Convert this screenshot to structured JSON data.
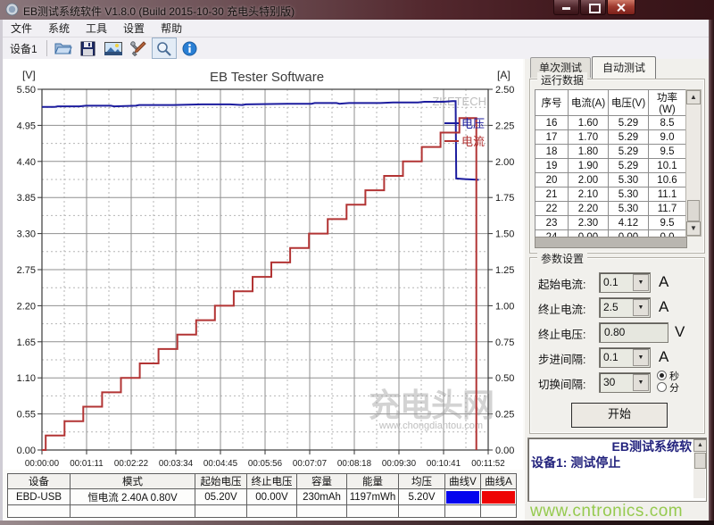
{
  "window": {
    "title": "EB测试系统软件 V1.8.0 (Build 2015-10-30 充电头特别版)"
  },
  "menu": {
    "items": [
      "文件",
      "系统",
      "工具",
      "设置",
      "帮助"
    ]
  },
  "toolbar": {
    "device_label": "设备1"
  },
  "chart_data": {
    "type": "line",
    "title": "EB Tester Software",
    "left_axis": {
      "label": "[V]",
      "min": 0,
      "max": 5.5,
      "ticks": [
        "5.50",
        "4.95",
        "4.40",
        "3.85",
        "3.30",
        "2.75",
        "2.20",
        "1.65",
        "1.10",
        "0.55",
        "0.00"
      ]
    },
    "right_axis": {
      "label": "[A]",
      "min": 0,
      "max": 2.5,
      "ticks": [
        "2.50",
        "2.25",
        "2.00",
        "1.75",
        "1.50",
        "1.25",
        "1.00",
        "0.75",
        "0.50",
        "0.25",
        "0.00"
      ]
    },
    "x_axis": {
      "min_seconds": 0,
      "max_seconds": 712,
      "ticks": [
        "00:00:00",
        "00:01:11",
        "00:02:22",
        "00:03:34",
        "00:04:45",
        "00:05:56",
        "00:07:07",
        "00:08:18",
        "00:09:30",
        "00:10:41",
        "00:11:52"
      ]
    },
    "grid": true,
    "legend_position": "top-right",
    "series": [
      {
        "name": "电压",
        "axis": "left",
        "color": "#1c1c9e",
        "points": [
          [
            0,
            5.23
          ],
          [
            20,
            5.23
          ],
          [
            25,
            5.24
          ],
          [
            60,
            5.24
          ],
          [
            70,
            5.25
          ],
          [
            110,
            5.25
          ],
          [
            115,
            5.24
          ],
          [
            150,
            5.25
          ],
          [
            155,
            5.26
          ],
          [
            210,
            5.26
          ],
          [
            255,
            5.27
          ],
          [
            300,
            5.27
          ],
          [
            320,
            5.26
          ],
          [
            325,
            5.27
          ],
          [
            390,
            5.28
          ],
          [
            430,
            5.28
          ],
          [
            435,
            5.29
          ],
          [
            470,
            5.29
          ],
          [
            475,
            5.28
          ],
          [
            490,
            5.29
          ],
          [
            540,
            5.29
          ],
          [
            560,
            5.3
          ],
          [
            600,
            5.3
          ],
          [
            610,
            5.31
          ],
          [
            640,
            5.31
          ],
          [
            655,
            5.32
          ],
          [
            660,
            5.32
          ],
          [
            661,
            4.14
          ],
          [
            675,
            4.13
          ],
          [
            697,
            4.12
          ]
        ]
      },
      {
        "name": "电流",
        "axis": "right",
        "color": "#b23434",
        "points": [
          [
            0,
            0
          ],
          [
            6,
            0
          ],
          [
            6,
            0.1
          ],
          [
            36,
            0.1
          ],
          [
            36,
            0.2
          ],
          [
            66,
            0.2
          ],
          [
            66,
            0.3
          ],
          [
            96,
            0.3
          ],
          [
            96,
            0.4
          ],
          [
            126,
            0.4
          ],
          [
            126,
            0.5
          ],
          [
            156,
            0.5
          ],
          [
            156,
            0.6
          ],
          [
            186,
            0.6
          ],
          [
            186,
            0.7
          ],
          [
            216,
            0.7
          ],
          [
            216,
            0.8
          ],
          [
            246,
            0.8
          ],
          [
            246,
            0.9
          ],
          [
            276,
            0.9
          ],
          [
            276,
            1.0
          ],
          [
            306,
            1.0
          ],
          [
            306,
            1.1
          ],
          [
            336,
            1.1
          ],
          [
            336,
            1.2
          ],
          [
            366,
            1.2
          ],
          [
            366,
            1.3
          ],
          [
            396,
            1.3
          ],
          [
            396,
            1.4
          ],
          [
            426,
            1.4
          ],
          [
            426,
            1.5
          ],
          [
            456,
            1.5
          ],
          [
            456,
            1.6
          ],
          [
            486,
            1.6
          ],
          [
            486,
            1.7
          ],
          [
            516,
            1.7
          ],
          [
            516,
            1.8
          ],
          [
            546,
            1.8
          ],
          [
            546,
            1.9
          ],
          [
            576,
            1.9
          ],
          [
            576,
            2.0
          ],
          [
            606,
            2.0
          ],
          [
            606,
            2.1
          ],
          [
            636,
            2.1
          ],
          [
            636,
            2.2
          ],
          [
            666,
            2.2
          ],
          [
            666,
            2.3
          ],
          [
            693,
            2.3
          ],
          [
            693,
            0
          ]
        ]
      }
    ]
  },
  "right_panel": {
    "tabs": [
      {
        "label": "单次测试",
        "active": false
      },
      {
        "label": "自动测试",
        "active": true
      }
    ],
    "run_data": {
      "group_label": "运行数据",
      "columns": [
        "序号",
        "电流(A)",
        "电压(V)",
        "功率(W)"
      ],
      "rows": [
        [
          "16",
          "1.60",
          "5.29",
          "8.5"
        ],
        [
          "17",
          "1.70",
          "5.29",
          "9.0"
        ],
        [
          "18",
          "1.80",
          "5.29",
          "9.5"
        ],
        [
          "19",
          "1.90",
          "5.29",
          "10.1"
        ],
        [
          "20",
          "2.00",
          "5.30",
          "10.6"
        ],
        [
          "21",
          "2.10",
          "5.30",
          "11.1"
        ],
        [
          "22",
          "2.20",
          "5.30",
          "11.7"
        ],
        [
          "23",
          "2.30",
          "4.12",
          "9.5"
        ],
        [
          "24",
          "0.00",
          "0.00",
          "0.0"
        ]
      ]
    },
    "params": {
      "group_label": "参数设置",
      "fields": [
        {
          "label": "起始电流:",
          "value": "0.1",
          "unit": "A",
          "control": "combo"
        },
        {
          "label": "终止电流:",
          "value": "2.5",
          "unit": "A",
          "control": "combo"
        },
        {
          "label": "终止电压:",
          "value": "0.80",
          "unit": "V",
          "control": "input"
        },
        {
          "label": "步进间隔:",
          "value": "0.1",
          "unit": "A",
          "control": "combo"
        },
        {
          "label": "切换间隔:",
          "value": "30",
          "unit": "",
          "control": "combo"
        }
      ],
      "interval_radio": {
        "options": [
          "秒",
          "分"
        ],
        "selected": "秒"
      },
      "start_button": "开始"
    },
    "log": {
      "line1": "EB测试系统软",
      "line2": "设备1: 测试停止"
    }
  },
  "bottom_table": {
    "headers": [
      "设备",
      "模式",
      "起始电压",
      "终止电压",
      "容量",
      "能量",
      "均压",
      "曲线V",
      "曲线A"
    ],
    "rows": [
      [
        "EBD-USB",
        "恒电流  2.40A  0.80V",
        "05.20V",
        "00.00V",
        "230mAh",
        "1197mWh",
        "5.20V",
        {
          "swatch": "#0404ee"
        },
        {
          "swatch": "#ee0404"
        }
      ],
      [
        "",
        "",
        "",
        "",
        "",
        "",
        "",
        "",
        ""
      ]
    ]
  },
  "watermarks": {
    "chart_brand": "ZKETECH",
    "chart_big": "充电头网",
    "chart_url": "www.chongdiantou.com",
    "site": "www.cntronics.com"
  }
}
